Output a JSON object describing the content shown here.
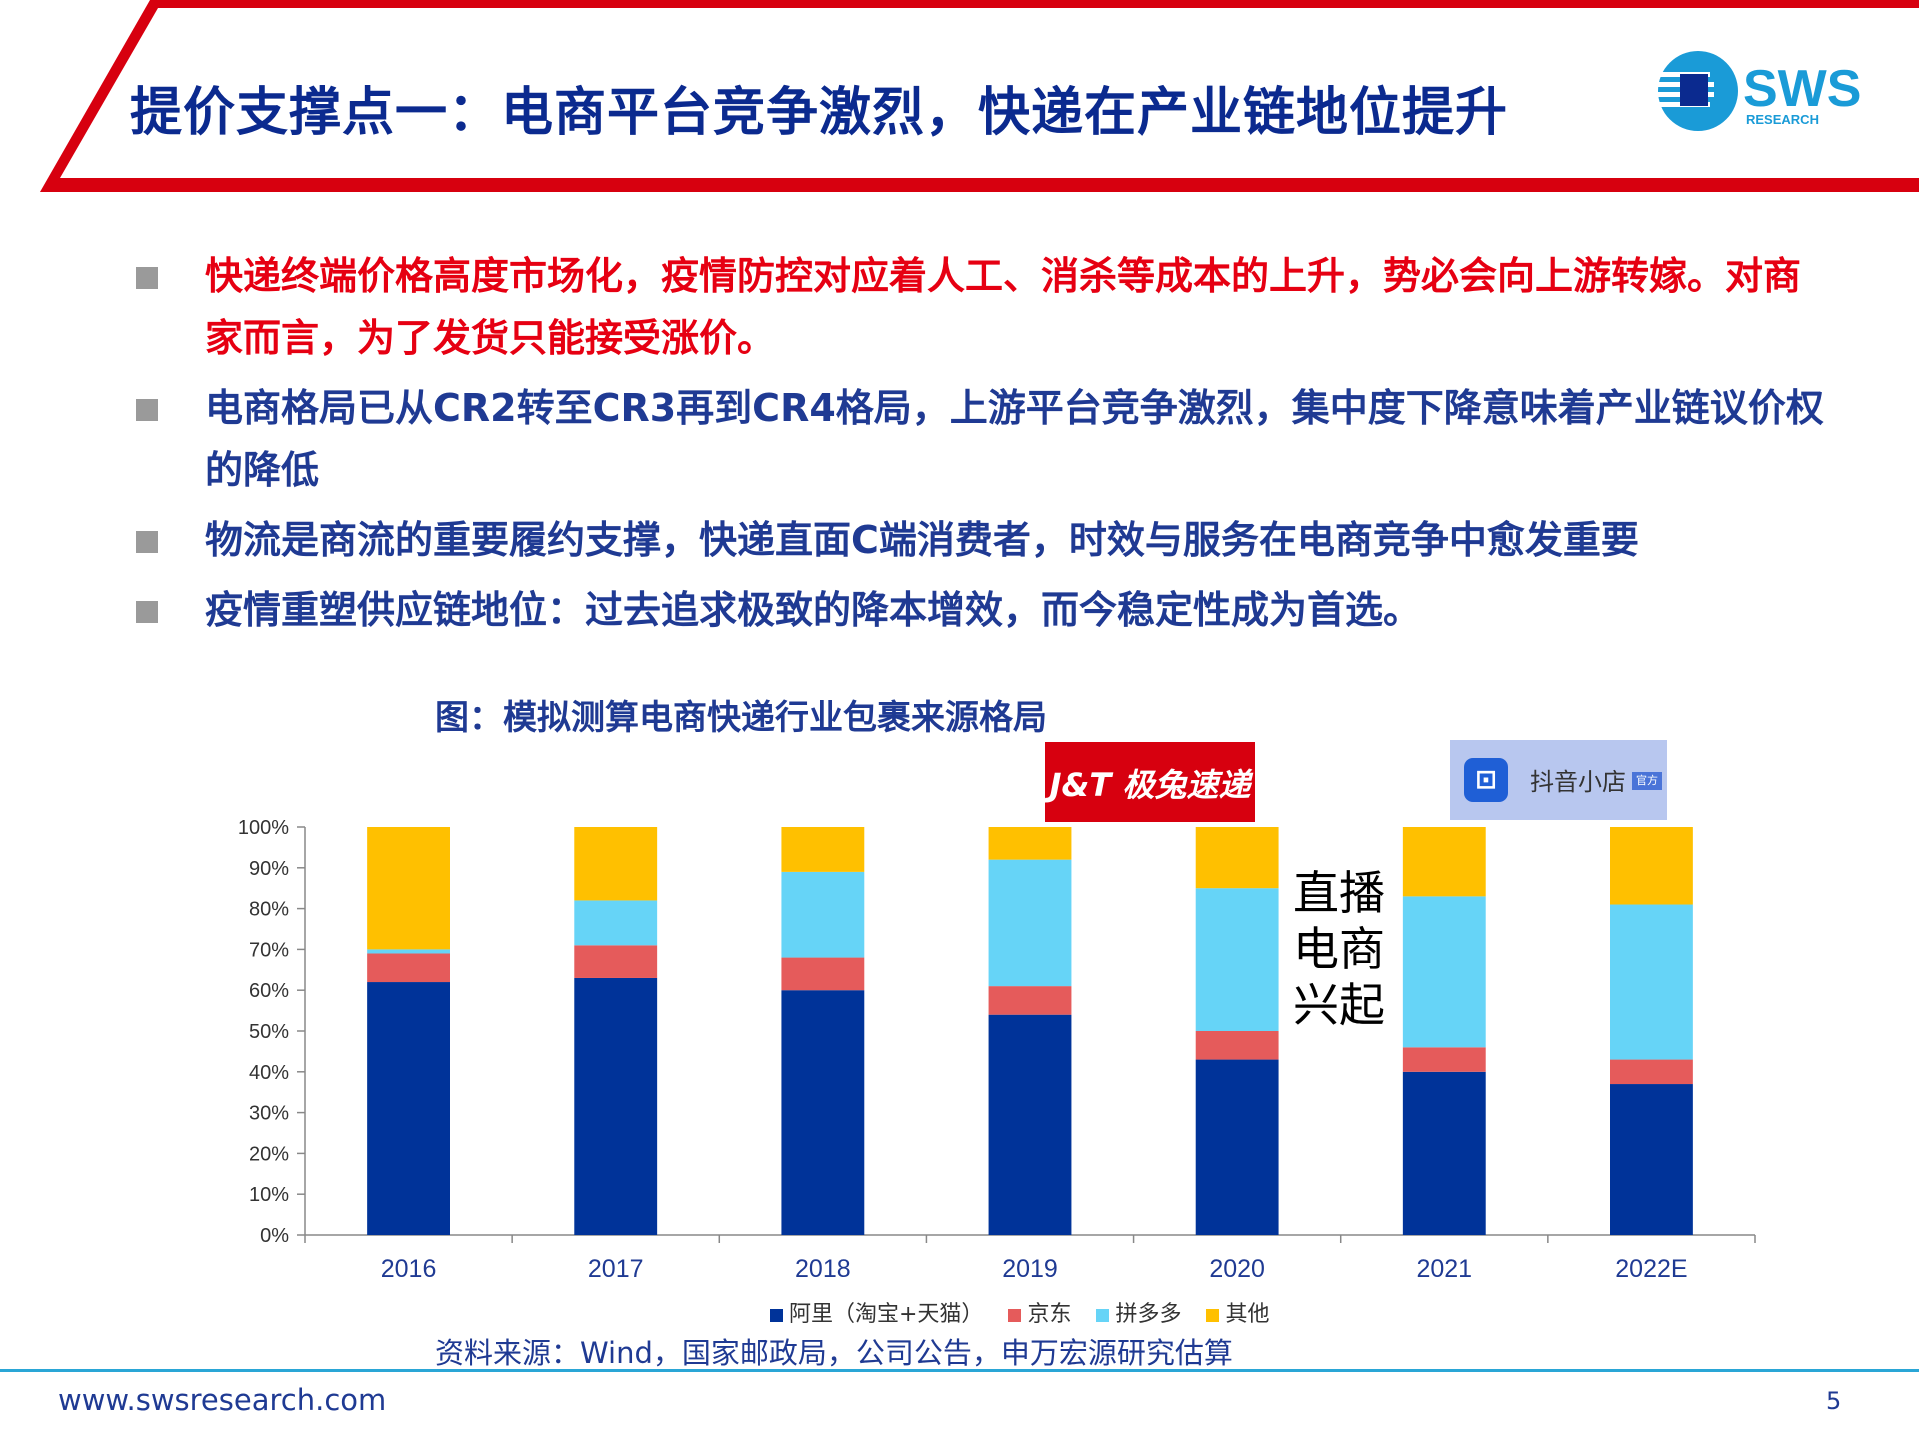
{
  "header": {
    "title": "提价支撑点一：电商平台竞争激烈，快递在产业链地位提升",
    "logo_text": "SWS",
    "logo_sub": "RESEARCH",
    "accent_red": "#d7000f",
    "logo_blue": "#1a9bd7"
  },
  "bullets": [
    {
      "text": "快递终端价格高度市场化，疫情防控对应着人工、消杀等成本的上升，势必会向上游转嫁。对商家而言，为了发货只能接受涨价。",
      "color": "#e60012"
    },
    {
      "text": "电商格局已从CR2转至CR3再到CR4格局，上游平台竞争激烈，集中度下降意味着产业链议价权的降低",
      "color": "#1f3a93"
    },
    {
      "text": "物流是商流的重要履约支撑，快递直面C端消费者，时效与服务在电商竞争中愈发重要",
      "color": "#1f3a93"
    },
    {
      "text": "疫情重塑供应链地位：过去追求极致的降本增效，而今稳定性成为首选。",
      "color": "#1f3a93"
    }
  ],
  "figure": {
    "title": "图：模拟测算电商快递行业包裹来源格局",
    "source": "资料来源：Wind，国家邮政局，公司公告，申万宏源研究估算",
    "annotation": "直播电商兴起",
    "jt_logo_text": "J&T 极兔速递",
    "douyin_logo_text": "抖音小店",
    "douyin_badge": "官方"
  },
  "chart_data": {
    "type": "bar",
    "stacked": true,
    "categories": [
      "2016",
      "2017",
      "2018",
      "2019",
      "2020",
      "2021",
      "2022E"
    ],
    "series": [
      {
        "name": "阿里（淘宝+天猫）",
        "color": "#003399",
        "values": [
          62,
          63,
          60,
          54,
          43,
          40,
          37
        ]
      },
      {
        "name": "京东",
        "color": "#e55b5b",
        "values": [
          7,
          8,
          8,
          7,
          7,
          6,
          6
        ]
      },
      {
        "name": "拼多多",
        "color": "#66d4f7",
        "values": [
          1,
          11,
          21,
          31,
          35,
          37,
          38
        ]
      },
      {
        "name": "其他",
        "color": "#ffc000",
        "values": [
          30,
          18,
          11,
          8,
          15,
          17,
          19
        ]
      }
    ],
    "yticks": [
      "0%",
      "10%",
      "20%",
      "30%",
      "40%",
      "50%",
      "60%",
      "70%",
      "80%",
      "90%",
      "100%"
    ],
    "ylim": [
      0,
      100
    ],
    "legend_position": "bottom"
  },
  "footer": {
    "url": "www.swsresearch.com",
    "page": "5"
  }
}
